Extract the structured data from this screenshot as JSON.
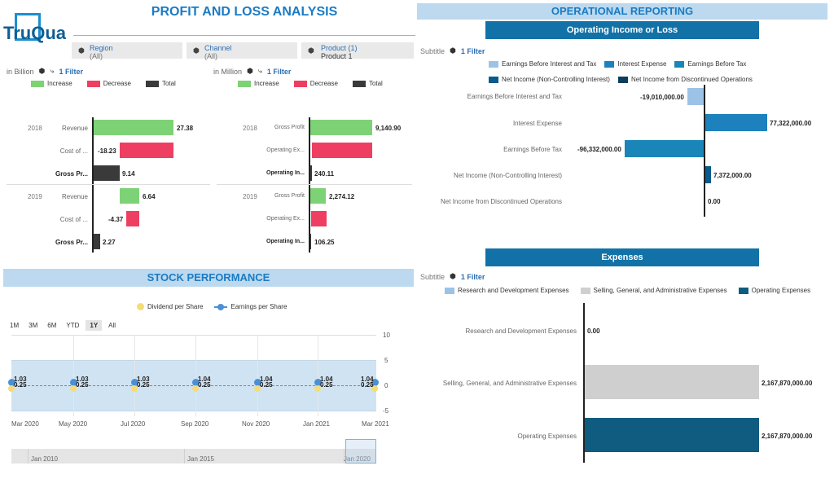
{
  "logo": {
    "text": "TruQua"
  },
  "pl": {
    "title": "PROFIT AND LOSS ANALYSIS",
    "filters": [
      {
        "label": "Region",
        "value": "(All)"
      },
      {
        "label": "Channel",
        "value": "(All)"
      },
      {
        "label": "Product (1)",
        "value": "Product 1"
      }
    ],
    "left": {
      "unit": "in Billion",
      "filter": "1 Filter",
      "legend": [
        "Increase",
        "Decrease",
        "Total"
      ],
      "rows": [
        {
          "year": "2018",
          "label": "Revenue",
          "value": "27.38"
        },
        {
          "year": "",
          "label": "Cost of ...",
          "value": "-18.23"
        },
        {
          "year": "",
          "label": "Gross Pr...",
          "value": "9.14"
        },
        {
          "year": "2019",
          "label": "Revenue",
          "value": "6.64"
        },
        {
          "year": "",
          "label": "Cost of ...",
          "value": "-4.37"
        },
        {
          "year": "",
          "label": "Gross Pr...",
          "value": "2.27"
        }
      ]
    },
    "right": {
      "unit": "in Million",
      "filter": "1 Filter",
      "legend": [
        "Increase",
        "Decrease",
        "Total"
      ],
      "rows": [
        {
          "year": "2018",
          "label": "Gross Profit",
          "value": "9,140.90"
        },
        {
          "year": "",
          "label": "Operating Ex...",
          "value": ""
        },
        {
          "year": "",
          "label": "Operating In...",
          "value": "240.11"
        },
        {
          "year": "2019",
          "label": "Gross Profit",
          "value": "2,274.12"
        },
        {
          "year": "",
          "label": "Operating Ex...",
          "value": ""
        },
        {
          "year": "",
          "label": "Operating In...",
          "value": "106.25"
        }
      ]
    },
    "colors": {
      "increase": "#7ed276",
      "decrease": "#ee3f62",
      "total": "#3a3a3a"
    }
  },
  "stock": {
    "title": "STOCK PERFORMANCE",
    "legend": [
      "Dividend per Share",
      "Earnings per Share"
    ],
    "ranges": [
      "1M",
      "3M",
      "6M",
      "YTD",
      "1Y",
      "All"
    ],
    "selected": "1Y",
    "yticks": [
      "10",
      "5",
      "0",
      "-5"
    ],
    "xticks": [
      "Mar 2020",
      "May 2020",
      "Jul 2020",
      "Sep 2020",
      "Nov 2020",
      "Jan 2021",
      "Mar 2021"
    ],
    "navigator": [
      "Jan 2010",
      "Jan 2015",
      "Jan 2020"
    ],
    "points": [
      {
        "eps": "1.03",
        "div": "0.25"
      },
      {
        "eps": "1.03",
        "div": "0.25"
      },
      {
        "eps": "1.03",
        "div": "0.25"
      },
      {
        "eps": "1.04",
        "div": "0.25"
      },
      {
        "eps": "1.04",
        "div": "0.25"
      },
      {
        "eps": "1.04",
        "div": "0.25"
      },
      {
        "eps": "1.04",
        "div": "0.25"
      }
    ]
  },
  "op": {
    "title": "OPERATIONAL REPORTING",
    "chart1": {
      "title": "Operating Income or Loss",
      "subtitle": "Subtitle",
      "filter": "1 Filter",
      "legend": [
        {
          "name": "Earnings Before Interest and Tax",
          "color": "#9cc3e6"
        },
        {
          "name": "Interest Expense",
          "color": "#1d81bd"
        },
        {
          "name": "Earnings Before Tax",
          "color": "#1985b8"
        },
        {
          "name": "Net Income (Non-Controlling Interest)",
          "color": "#0b5a8c"
        },
        {
          "name": "Net Income from Discontinued Operations",
          "color": "#0c3d5e"
        }
      ],
      "rows": [
        {
          "label": "Earnings Before Interest and Tax",
          "value": "-19,010,000.00"
        },
        {
          "label": "Interest Expense",
          "value": "77,322,000.00"
        },
        {
          "label": "Earnings Before Tax",
          "value": "-96,332,000.00"
        },
        {
          "label": "Net Income (Non-Controlling Interest)",
          "value": "7,372,000.00"
        },
        {
          "label": "Net Income from Discontinued Operations",
          "value": "0.00"
        }
      ]
    },
    "chart2": {
      "title": "Expenses",
      "subtitle": "Subtitle",
      "filter": "1 Filter",
      "legend": [
        {
          "name": "Research and Development Expenses",
          "color": "#9cc3e6"
        },
        {
          "name": "Selling, General, and Administrative Expenses",
          "color": "#cfcfcf"
        },
        {
          "name": "Operating Expenses",
          "color": "#0f5c80"
        }
      ],
      "rows": [
        {
          "label": "Research and Development Expenses",
          "value": "0.00"
        },
        {
          "label": "Selling, General, and Administrative Expenses",
          "value": "2,167,870,000.00"
        },
        {
          "label": "Operating Expenses",
          "value": "2,167,870,000.00"
        }
      ]
    }
  }
}
